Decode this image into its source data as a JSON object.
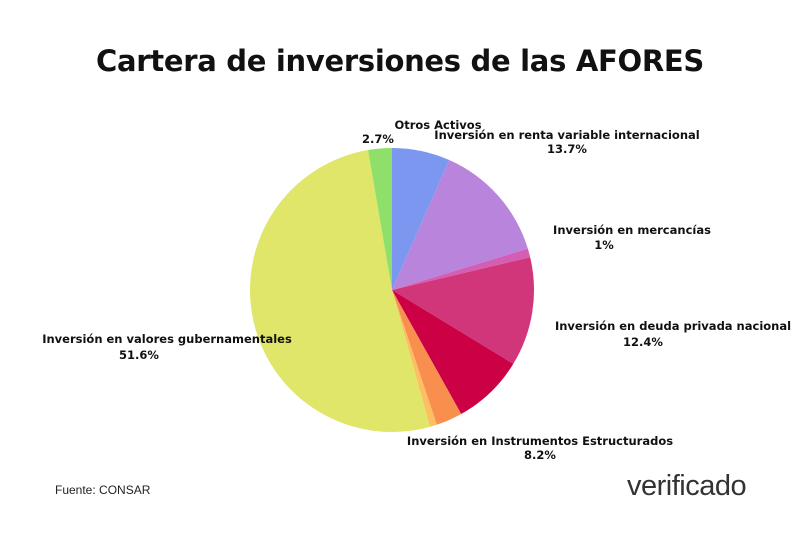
{
  "chart_data": {
    "type": "pie",
    "title": "Cartera de inversiones de las AFORES",
    "start": "top",
    "direction": "clockwise",
    "slices": [
      {
        "label": "",
        "value": 6.6,
        "value_label": "",
        "color": "#7b97ef"
      },
      {
        "label": "Inversión en renta variable internacional",
        "value": 13.7,
        "value_label": "13.7%",
        "color": "#b884dc"
      },
      {
        "label": "Inversión en mercancías",
        "value": 1,
        "value_label": "1%",
        "color": "#d35fb4"
      },
      {
        "label": "Inversión en deuda privada nacional",
        "value": 12.4,
        "value_label": "12.4%",
        "color": "#d1357a"
      },
      {
        "label": "Inversión en Instrumentos Estructurados",
        "value": 8.2,
        "value_label": "8.2%",
        "color": "#cc0044"
      },
      {
        "label": "",
        "value": 3.0,
        "value_label": "",
        "color": "#f98f4f"
      },
      {
        "label": "",
        "value": 0.8,
        "value_label": "",
        "color": "#fbc060"
      },
      {
        "label": "Inversión en valores gubernamentales",
        "value": 51.6,
        "value_label": "51.6%",
        "color": "#e0e66a"
      },
      {
        "label": "Otros Activos",
        "value": 2.7,
        "value_label": "2.7%",
        "color": "#8ee06a"
      }
    ]
  },
  "source": "Fuente: CONSAR",
  "logo": "verificado"
}
